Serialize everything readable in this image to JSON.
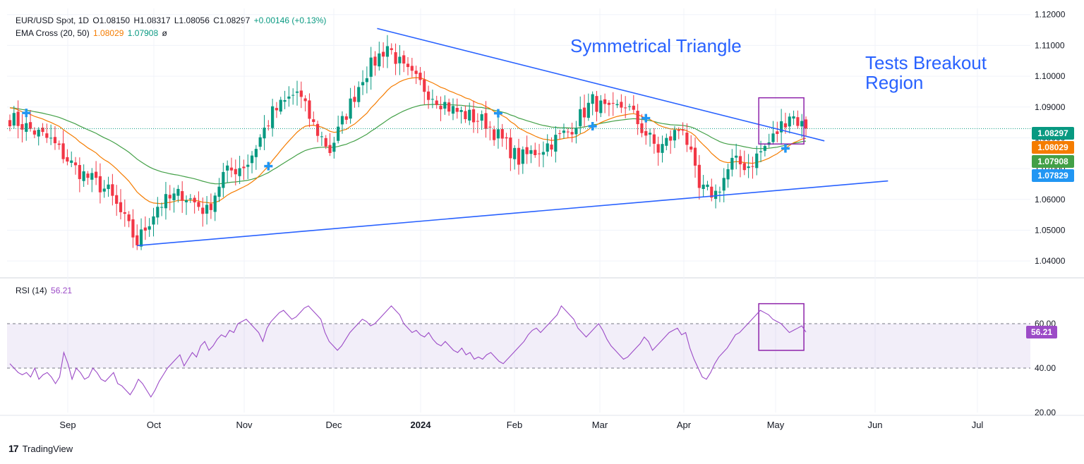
{
  "header": {
    "symbol": "EUR/USD Spot, 1D",
    "open": "O1.08150",
    "high": "H1.08317",
    "low": "L1.08056",
    "close": "C1.08297",
    "change": "+0.00146 (+0.13%)",
    "ema_label": "EMA Cross (20, 50)",
    "ema20": "1.08029",
    "ema50": "1.07908",
    "ema_suffix": "ø",
    "rsi_label": "RSI (14)",
    "rsi_value": "56.21"
  },
  "annotations": {
    "triangle": "Symmetrical Triangle",
    "breakout_line1": "Tests Breakout",
    "breakout_line2": "Region"
  },
  "branding": {
    "logo_mark": "17",
    "logo_text": "TradingView"
  },
  "colors": {
    "up": "#089981",
    "down": "#F23645",
    "ema20": "#F57C00",
    "ema50": "#43A047",
    "trend": "#2962FF",
    "rsi": "#9C4BC7",
    "box": "#8E24AA",
    "cross": "#2196F3"
  },
  "chart_data": [
    {
      "type": "candlestick",
      "title": "EUR/USD Spot, 1D",
      "ylim": [
        1.035,
        1.122
      ],
      "y_ticks": [
        "1.12000",
        "1.11000",
        "1.10000",
        "1.09000",
        "1.08000",
        "1.07000",
        "1.06000",
        "1.05000",
        "1.04000"
      ],
      "x_labels": [
        "Sep",
        "Oct",
        "Nov",
        "Dec",
        "2024",
        "Feb",
        "Mar",
        "Apr",
        "May",
        "Jun",
        "Jul"
      ],
      "price_labels": [
        {
          "name": "last",
          "value": "1.08297",
          "color": "#089981"
        },
        {
          "name": "ema20",
          "value": "1.08029",
          "color": "#F57C00"
        },
        {
          "name": "ema50",
          "value": "1.07908",
          "color": "#43A047"
        },
        {
          "name": "cross",
          "value": "1.07829",
          "color": "#2196F3"
        }
      ],
      "anchors": [
        {
          "day": 0,
          "price": 1.0865
        },
        {
          "day": 10,
          "price": 1.079
        },
        {
          "day": 16,
          "price": 1.07
        },
        {
          "day": 24,
          "price": 1.0625
        },
        {
          "day": 31,
          "price": 1.046
        },
        {
          "day": 36,
          "price": 1.058
        },
        {
          "day": 42,
          "price": 1.062
        },
        {
          "day": 48,
          "price": 1.056
        },
        {
          "day": 52,
          "price": 1.068
        },
        {
          "day": 58,
          "price": 1.072
        },
        {
          "day": 64,
          "price": 1.088
        },
        {
          "day": 70,
          "price": 1.095
        },
        {
          "day": 74,
          "price": 1.084
        },
        {
          "day": 78,
          "price": 1.076
        },
        {
          "day": 86,
          "price": 1.1
        },
        {
          "day": 92,
          "price": 1.11
        },
        {
          "day": 96,
          "price": 1.102
        },
        {
          "day": 102,
          "price": 1.095
        },
        {
          "day": 108,
          "price": 1.089
        },
        {
          "day": 116,
          "price": 1.085
        },
        {
          "day": 124,
          "price": 1.073
        },
        {
          "day": 130,
          "price": 1.077
        },
        {
          "day": 136,
          "price": 1.082
        },
        {
          "day": 142,
          "price": 1.092
        },
        {
          "day": 146,
          "price": 1.088
        },
        {
          "day": 150,
          "price": 1.091
        },
        {
          "day": 154,
          "price": 1.083
        },
        {
          "day": 158,
          "price": 1.076
        },
        {
          "day": 164,
          "price": 1.084
        },
        {
          "day": 168,
          "price": 1.063
        },
        {
          "day": 172,
          "price": 1.062
        },
        {
          "day": 176,
          "price": 1.072
        },
        {
          "day": 180,
          "price": 1.071
        },
        {
          "day": 186,
          "price": 1.08
        },
        {
          "day": 190,
          "price": 1.088
        },
        {
          "day": 194,
          "price": 1.083
        }
      ],
      "ema_cross_days": [
        4,
        63,
        119,
        142,
        155,
        189
      ],
      "trendlines": [
        {
          "name": "upper",
          "from": {
            "day": 89.5,
            "price": 1.1155
          },
          "to": {
            "day": 198.5,
            "price": 1.079
          }
        },
        {
          "name": "lower",
          "from": {
            "day": 31,
            "price": 1.045
          },
          "to": {
            "day": 214,
            "price": 1.066
          }
        }
      ],
      "highlight_box": {
        "from_day": 182.5,
        "to_day": 193.5,
        "from_price": 1.078,
        "to_price": 1.093
      }
    },
    {
      "type": "line",
      "title": "RSI (14)",
      "ylim": [
        20,
        80
      ],
      "y_ticks": [
        "60.00",
        "40.00",
        "20.00"
      ],
      "levels": [
        60,
        40
      ],
      "last": "56.21",
      "values": [
        42,
        40,
        38,
        37,
        38,
        36,
        40,
        35,
        37,
        38,
        36,
        33,
        36,
        47,
        42,
        35,
        40,
        38,
        35,
        36,
        40,
        38,
        35,
        34,
        36,
        38,
        33,
        32,
        30,
        28,
        31,
        35,
        33,
        30,
        27,
        30,
        34,
        37,
        40,
        42,
        44,
        46,
        41,
        44,
        47,
        45,
        50,
        52,
        48,
        50,
        53,
        55,
        54,
        57,
        56,
        60,
        61,
        62,
        60,
        58,
        56,
        52,
        58,
        61,
        63,
        65,
        66,
        64,
        62,
        63,
        65,
        67,
        68,
        66,
        64,
        62,
        56,
        52,
        50,
        48,
        50,
        53,
        56,
        58,
        60,
        62,
        61,
        59,
        60,
        62,
        64,
        66,
        68,
        66,
        64,
        60,
        58,
        56,
        57,
        55,
        54,
        56,
        53,
        51,
        50,
        52,
        50,
        48,
        47,
        49,
        46,
        47,
        44,
        45,
        44,
        46,
        47,
        45,
        43,
        42,
        44,
        46,
        48,
        50,
        52,
        55,
        57,
        58,
        56,
        58,
        60,
        62,
        64,
        68,
        66,
        64,
        62,
        58,
        56,
        54,
        56,
        58,
        60,
        57,
        53,
        50,
        48,
        46,
        44,
        45,
        47,
        49,
        51,
        54,
        52,
        48,
        50,
        52,
        54,
        56,
        57,
        58,
        55,
        56,
        49,
        44,
        40,
        36,
        35,
        38,
        42,
        45,
        47,
        49,
        52,
        55,
        56,
        58,
        60,
        62,
        64,
        66,
        65,
        64,
        62,
        61,
        60,
        58,
        56,
        57,
        58,
        59,
        56.21
      ],
      "highlight_box": {
        "from_day": 182.5,
        "to_day": 193.5,
        "from_value": 48,
        "to_value": 69
      }
    }
  ]
}
